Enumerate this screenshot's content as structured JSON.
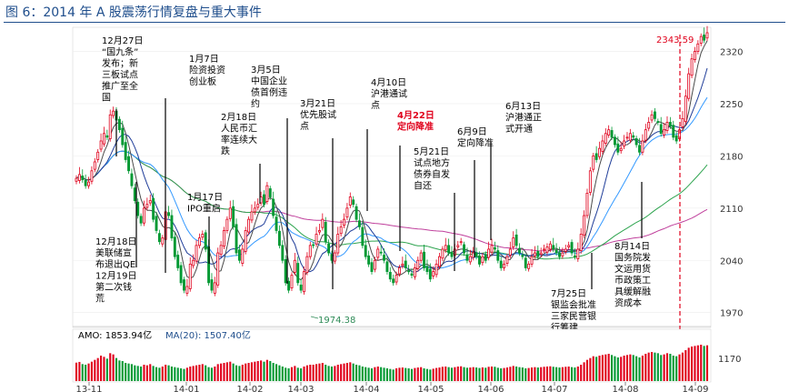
{
  "figure_title": "图 6：2014 年 A 股震荡行情复盘与重大事件",
  "chart_data": {
    "type": "candlestick",
    "title": "图 6：2014 年 A 股震荡行情复盘与重大事件",
    "x_ticks": [
      "13-11",
      "14-01",
      "14-02",
      "14-03",
      "14-04",
      "14-05",
      "14-06",
      "14-07",
      "14-08",
      "14-09"
    ],
    "y_ticks": [
      1970,
      2040,
      2110,
      2180,
      2250,
      2320
    ],
    "ylim": [
      1955,
      2345
    ],
    "high_label": "2343.59",
    "low_label": "1974.38",
    "colors": {
      "up": "#e0001b",
      "down": "#009933",
      "ma5": "#4a4a4a",
      "ma10": "#1f3d99",
      "ma20": "#3399ff",
      "ma60": "#2ea44f",
      "ma120": "#c0409c",
      "volume_up": "#e0001b",
      "volume_down": "#009933"
    },
    "close_series": [
      2150,
      2155,
      2148,
      2140,
      2145,
      2160,
      2172,
      2185,
      2200,
      2210,
      2205,
      2235,
      2240,
      2228,
      2215,
      2195,
      2175,
      2160,
      2140,
      2120,
      2100,
      2090,
      2110,
      2115,
      2120,
      2095,
      2080,
      2065,
      2070,
      2105,
      2100,
      2070,
      2045,
      2030,
      2010,
      2000,
      2005,
      2035,
      2040,
      2060,
      2070,
      2075,
      2055,
      2010,
      2000,
      2010,
      2050,
      2060,
      2080,
      2095,
      2110,
      2085,
      2050,
      2040,
      2055,
      2080,
      2095,
      2105,
      2110,
      2115,
      2125,
      2115,
      2140,
      2125,
      2100,
      2080,
      2060,
      2040,
      2010,
      2000,
      2020,
      2040,
      2010,
      2000,
      2025,
      2045,
      2060,
      2060,
      2075,
      2080,
      2095,
      2065,
      2050,
      2040,
      2050,
      2075,
      2085,
      2095,
      2110,
      2125,
      2115,
      2095,
      2085,
      2060,
      2045,
      2035,
      2025,
      2040,
      2055,
      2050,
      2040,
      2025,
      2015,
      2010,
      2020,
      2030,
      2035,
      2030,
      2025,
      2020,
      2030,
      2040,
      2050,
      2030,
      2025,
      2015,
      2025,
      2035,
      2045,
      2055,
      2060,
      2050,
      2045,
      2055,
      2060,
      2065,
      2050,
      2040,
      2045,
      2050,
      2045,
      2035,
      2045,
      2040,
      2055,
      2060,
      2055,
      2040,
      2030,
      2035,
      2045,
      2055,
      2070,
      2060,
      2050,
      2045,
      2030,
      2035,
      2045,
      2050,
      2045,
      2050,
      2055,
      2058,
      2062,
      2055,
      2050,
      2045,
      2050,
      2055,
      2060,
      2050,
      2045,
      2055,
      2075,
      2100,
      2130,
      2160,
      2180,
      2175,
      2190,
      2200,
      2210,
      2215,
      2205,
      2195,
      2185,
      2190,
      2200,
      2205,
      2210,
      2205,
      2195,
      2185,
      2200,
      2215,
      2225,
      2235,
      2230,
      2225,
      2210,
      2215,
      2225,
      2220,
      2205,
      2200,
      2215,
      2230,
      2260,
      2290,
      2310,
      2320,
      2330,
      2340,
      2335,
      2345
    ],
    "annotations": [
      {
        "lines": [
          "12月27日",
          "“国九条”",
          "发布；新",
          "三板试点",
          "推广至全",
          "国"
        ],
        "color": "black",
        "tx": 112,
        "ty": 48,
        "lx": 128,
        "ly1": 120,
        "ly2": 172
      },
      {
        "lines": [
          "1月7日",
          "险资投资",
          "创业板"
        ],
        "color": "black",
        "tx": 208,
        "ty": 68,
        "lx": 182,
        "ly1": 108,
        "ly2": 300
      },
      {
        "lines": [
          "3月5日",
          "中国企业",
          "债首例违",
          "约"
        ],
        "color": "black",
        "tx": 276,
        "ty": 80,
        "lx": 316,
        "ly1": 130,
        "ly2": 312
      },
      {
        "lines": [
          "3月21日",
          "优先股试",
          "点"
        ],
        "color": "black",
        "tx": 330,
        "ty": 117,
        "lx": 366,
        "ly1": 152,
        "ly2": 318
      },
      {
        "lines": [
          "4月10日",
          "沪港通试",
          "点"
        ],
        "color": "black",
        "tx": 408,
        "ty": 94,
        "lx": 404,
        "ly1": 142,
        "ly2": 232
      },
      {
        "lines": [
          "4月22日",
          "定向降准"
        ],
        "color": "red",
        "tx": 437,
        "ty": 130,
        "lx": 440,
        "ly1": 160,
        "ly2": 276
      },
      {
        "lines": [
          "5月21日",
          "试点地方",
          "债券自发",
          "自还"
        ],
        "color": "black",
        "tx": 455,
        "ty": 170,
        "lx": 500,
        "ly1": 212,
        "ly2": 298
      },
      {
        "lines": [
          "6月9日",
          "定向降准"
        ],
        "color": "black",
        "tx": 503,
        "ty": 148,
        "lx": 522,
        "ly1": 176,
        "ly2": 283
      },
      {
        "lines": [
          "6月13日",
          "沪港通正",
          "式开通"
        ],
        "color": "black",
        "tx": 556,
        "ty": 120,
        "lx": 540,
        "ly1": 156,
        "ly2": 264
      },
      {
        "lines": [
          "2月18日",
          "人民币汇",
          "率连续大",
          "跌"
        ],
        "color": "black",
        "tx": 243,
        "ty": 132,
        "lx": 286,
        "ly1": 180,
        "ly2": 224
      },
      {
        "lines": [
          "1月17日",
          "IPO重启"
        ],
        "color": "black",
        "tx": 206,
        "ty": 220,
        "lx": 230,
        "ly1": 238,
        "ly2": 290
      },
      {
        "lines": [
          "12月18日",
          "美联储宣",
          "布退出QE",
          "12月19日",
          "第二次钱",
          "荒"
        ],
        "color": "black",
        "tx": 105,
        "ty": 269,
        "lx": 150,
        "ly1": 200,
        "ly2": 294
      },
      {
        "lines": [
          "7月25日",
          "银监会批准",
          "三家民营银",
          "行筹建"
        ],
        "color": "black",
        "tx": 606,
        "ty": 326,
        "lx": 651,
        "ly1": 278,
        "ly2": 318
      },
      {
        "lines": [
          "8月14日",
          "国务院发",
          "文运用货",
          "币政策工",
          "具缓解融",
          "资成本"
        ],
        "color": "black",
        "tx": 676,
        "ty": 274,
        "lx": 706,
        "ly1": 200,
        "ly2": 262
      }
    ],
    "volume": {
      "amo_label": "AMO: 1853.94亿",
      "ma20_label": "MA(20): 1507.40亿",
      "tick_label": "1170",
      "values": [
        1520,
        1580,
        1400,
        1350,
        1450,
        1600,
        1750,
        1900,
        2100,
        2000,
        1850,
        2300,
        2200,
        1900,
        1700,
        1650,
        1500,
        1450,
        1400,
        1300,
        1250,
        1200,
        1350,
        1300,
        1400,
        1250,
        1150,
        1100,
        1200,
        1350,
        1300,
        1200,
        1150,
        1100,
        1050,
        1000,
        1100,
        1200,
        1250,
        1300,
        1350,
        1400,
        1300,
        1150,
        1100,
        1200,
        1400,
        1450,
        1500,
        1550,
        1600,
        1450,
        1300,
        1250,
        1350,
        1450,
        1500,
        1550,
        1600,
        1650,
        1700,
        1600,
        1750,
        1650,
        1500,
        1400,
        1300,
        1200,
        1100,
        1050,
        1150,
        1250,
        1100,
        1050,
        1200,
        1300,
        1350,
        1350,
        1400,
        1450,
        1500,
        1350,
        1250,
        1200,
        1250,
        1350,
        1400,
        1450,
        1500,
        1550,
        1450,
        1350,
        1300,
        1200,
        1150,
        1100,
        1050,
        1150,
        1200,
        1150,
        1100,
        1050,
        1000,
        950,
        1050,
        1100,
        1120,
        1080,
        1050,
        1000,
        1080,
        1120,
        1150,
        1050,
        1000,
        950,
        1020,
        1080,
        1120,
        1180,
        1200,
        1150,
        1100,
        1150,
        1200,
        1220,
        1150,
        1100,
        1120,
        1150,
        1120,
        1080,
        1130,
        1100,
        1180,
        1200,
        1180,
        1100,
        1050,
        1080,
        1120,
        1180,
        1250,
        1200,
        1150,
        1120,
        1050,
        1080,
        1120,
        1150,
        1120,
        1150,
        1180,
        1200,
        1220,
        1180,
        1150,
        1120,
        1150,
        1180,
        1200,
        1150,
        1120,
        1200,
        1350,
        1550,
        1750,
        1900,
        2050,
        2000,
        2100,
        2150,
        2200,
        2250,
        2150,
        2050,
        1950,
        2000,
        2100,
        2150,
        2200,
        2150,
        2050,
        1950,
        2100,
        2250,
        2350,
        2400,
        2350,
        2300,
        2150,
        2200,
        2300,
        2250,
        2100,
        2050,
        2200,
        2350,
        2550,
        2750,
        2850,
        2900,
        2950,
        3000,
        2900,
        2950
      ]
    }
  }
}
